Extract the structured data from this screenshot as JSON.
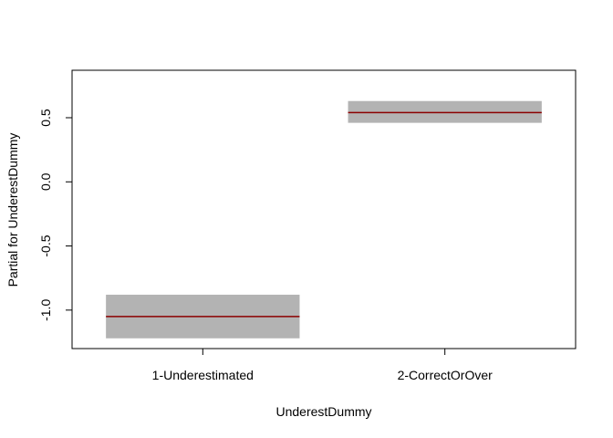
{
  "chart_data": {
    "type": "bar",
    "title": "",
    "xlabel": "UnderestDummy",
    "ylabel": "Partial for UnderestDummy",
    "categories": [
      "1-Underestimated",
      "2-CorrectOrOver"
    ],
    "series": [
      {
        "values": [
          -1.05,
          0.54
        ],
        "lower": [
          -1.22,
          0.46
        ],
        "upper": [
          -0.88,
          0.63
        ]
      }
    ],
    "ylim": [
      -1.3,
      0.87
    ],
    "yticks": [
      -1.0,
      -0.5,
      0.0,
      0.5
    ],
    "ytick_labels": [
      "-1.0",
      "-0.5",
      "0.0",
      "0.5"
    ],
    "grid": false,
    "colors": {
      "estimate_line": "#8b0000",
      "interval_band": "#b3b3b3",
      "axis": "#000000"
    }
  }
}
